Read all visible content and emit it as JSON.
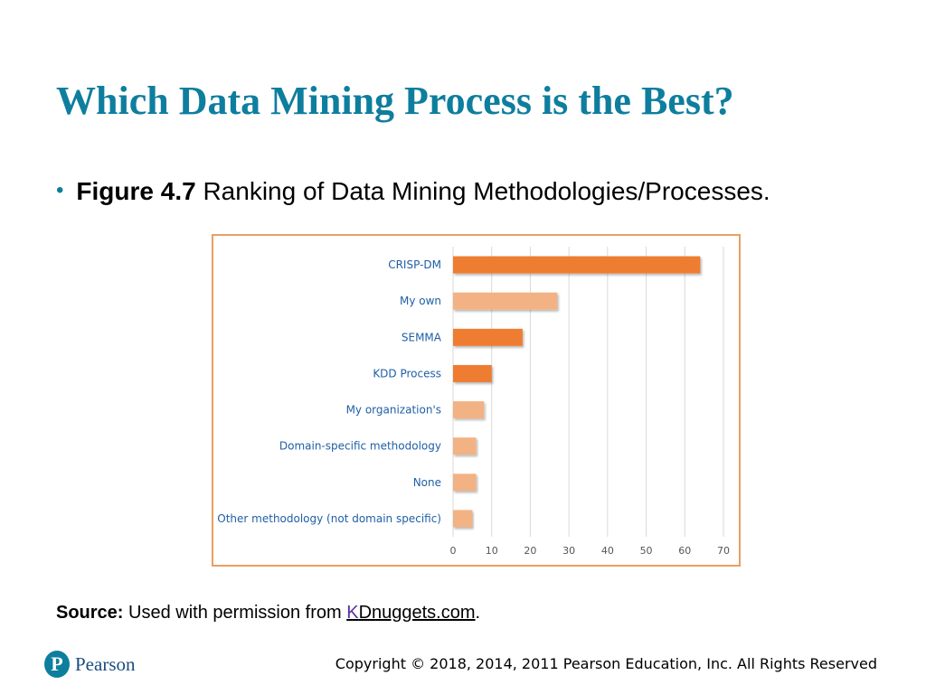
{
  "slide": {
    "title": "Which Data Mining Process is the Best?",
    "bullet_label": "Figure 4.7",
    "bullet_text": "Ranking of Data Mining Methodologies/Processes.",
    "source_prefix": "Source:",
    "source_text": "Used with permission from",
    "source_link_first": "K",
    "source_link_rest": "Dnuggets.com",
    "source_suffix": ".",
    "brand": "Pearson",
    "logo_letter": "P",
    "copyright": "Copyright © 2018, 2014, 2011 Pearson Education, Inc. All Rights Reserved"
  },
  "colors": {
    "title": "#0e7e9e",
    "bar_dark": "#ee7d31",
    "bar_light": "#f2b283",
    "frame": "#e8a061",
    "category_text": "#1f5fa6"
  },
  "chart_data": {
    "type": "bar",
    "orientation": "horizontal",
    "title": "",
    "xlabel": "",
    "ylabel": "",
    "xlim": [
      0,
      70
    ],
    "ticks": [
      0,
      10,
      20,
      30,
      40,
      50,
      60,
      70
    ],
    "grid": true,
    "categories": [
      "CRISP-DM",
      "My own",
      "SEMMA",
      "KDD Process",
      "My organization's",
      "Domain-specific methodology",
      "None",
      "Other methodology (not domain specific)"
    ],
    "values": [
      64,
      27,
      18,
      10,
      8,
      6,
      6,
      5
    ],
    "bar_tone": [
      "dark",
      "light",
      "dark",
      "dark",
      "light",
      "light",
      "light",
      "light"
    ]
  }
}
